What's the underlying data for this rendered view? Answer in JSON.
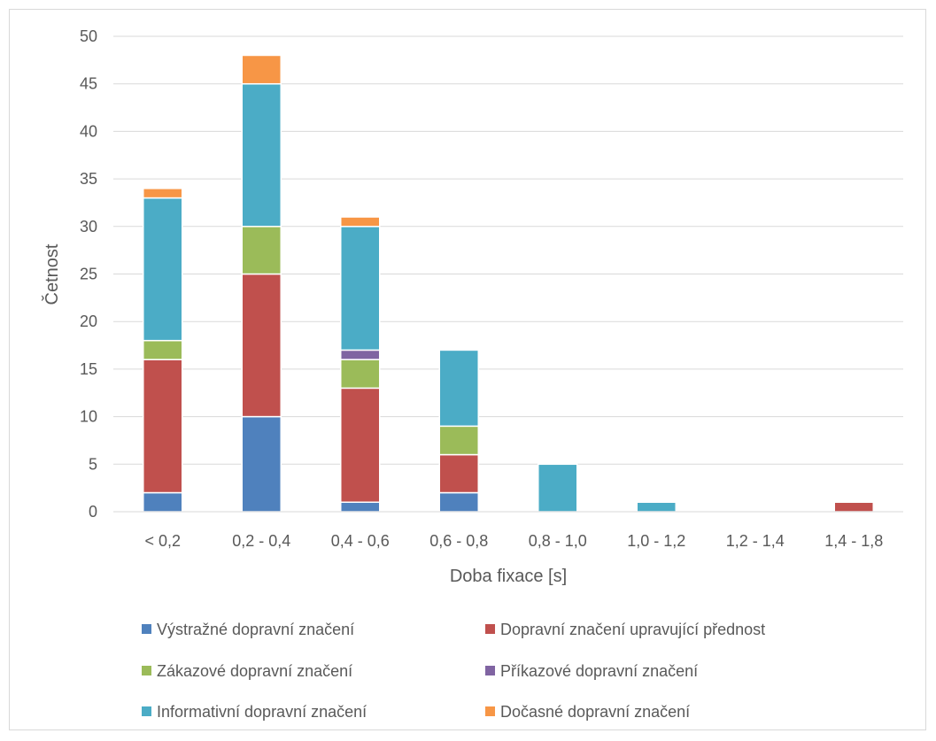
{
  "chart_data": {
    "type": "bar",
    "stacked": true,
    "title": "",
    "xlabel": "Doba fixace [s]",
    "ylabel": "Četnost",
    "ylim": [
      0,
      50
    ],
    "yticks": [
      "0",
      "5",
      "10",
      "15",
      "20",
      "25",
      "30",
      "35",
      "40",
      "45",
      "50"
    ],
    "grid": true,
    "legend_position": "bottom",
    "categories": [
      "< 0,2",
      "0,2 - 0,4",
      "0,4 - 0,6",
      "0,6 - 0,8",
      "0,8 - 1,0",
      "1,0 - 1,2",
      "1,2 - 1,4",
      "1,4 - 1,8"
    ],
    "series": [
      {
        "name": "Výstražné dopravní značení",
        "color": "#4f81bd",
        "values": [
          2,
          10,
          1,
          2,
          0,
          0,
          0,
          0
        ]
      },
      {
        "name": "Dopravní značení upravující přednost",
        "color": "#c0504d",
        "values": [
          14,
          15,
          12,
          4,
          0,
          0,
          0,
          1
        ]
      },
      {
        "name": "Zákazové dopravní značení",
        "color": "#9bbb59",
        "values": [
          2,
          5,
          3,
          3,
          0,
          0,
          0,
          0
        ]
      },
      {
        "name": "Příkazové dopravní značení",
        "color": "#8064a2",
        "values": [
          0,
          0,
          1,
          0,
          0,
          0,
          0,
          0
        ]
      },
      {
        "name": "Informativní dopravní značení",
        "color": "#4bacc6",
        "values": [
          15,
          15,
          13,
          8,
          5,
          1,
          0,
          0
        ]
      },
      {
        "name": "Dočasné dopravní značení",
        "color": "#f79646",
        "values": [
          1,
          3,
          1,
          0,
          0,
          0,
          0,
          0
        ]
      }
    ]
  }
}
